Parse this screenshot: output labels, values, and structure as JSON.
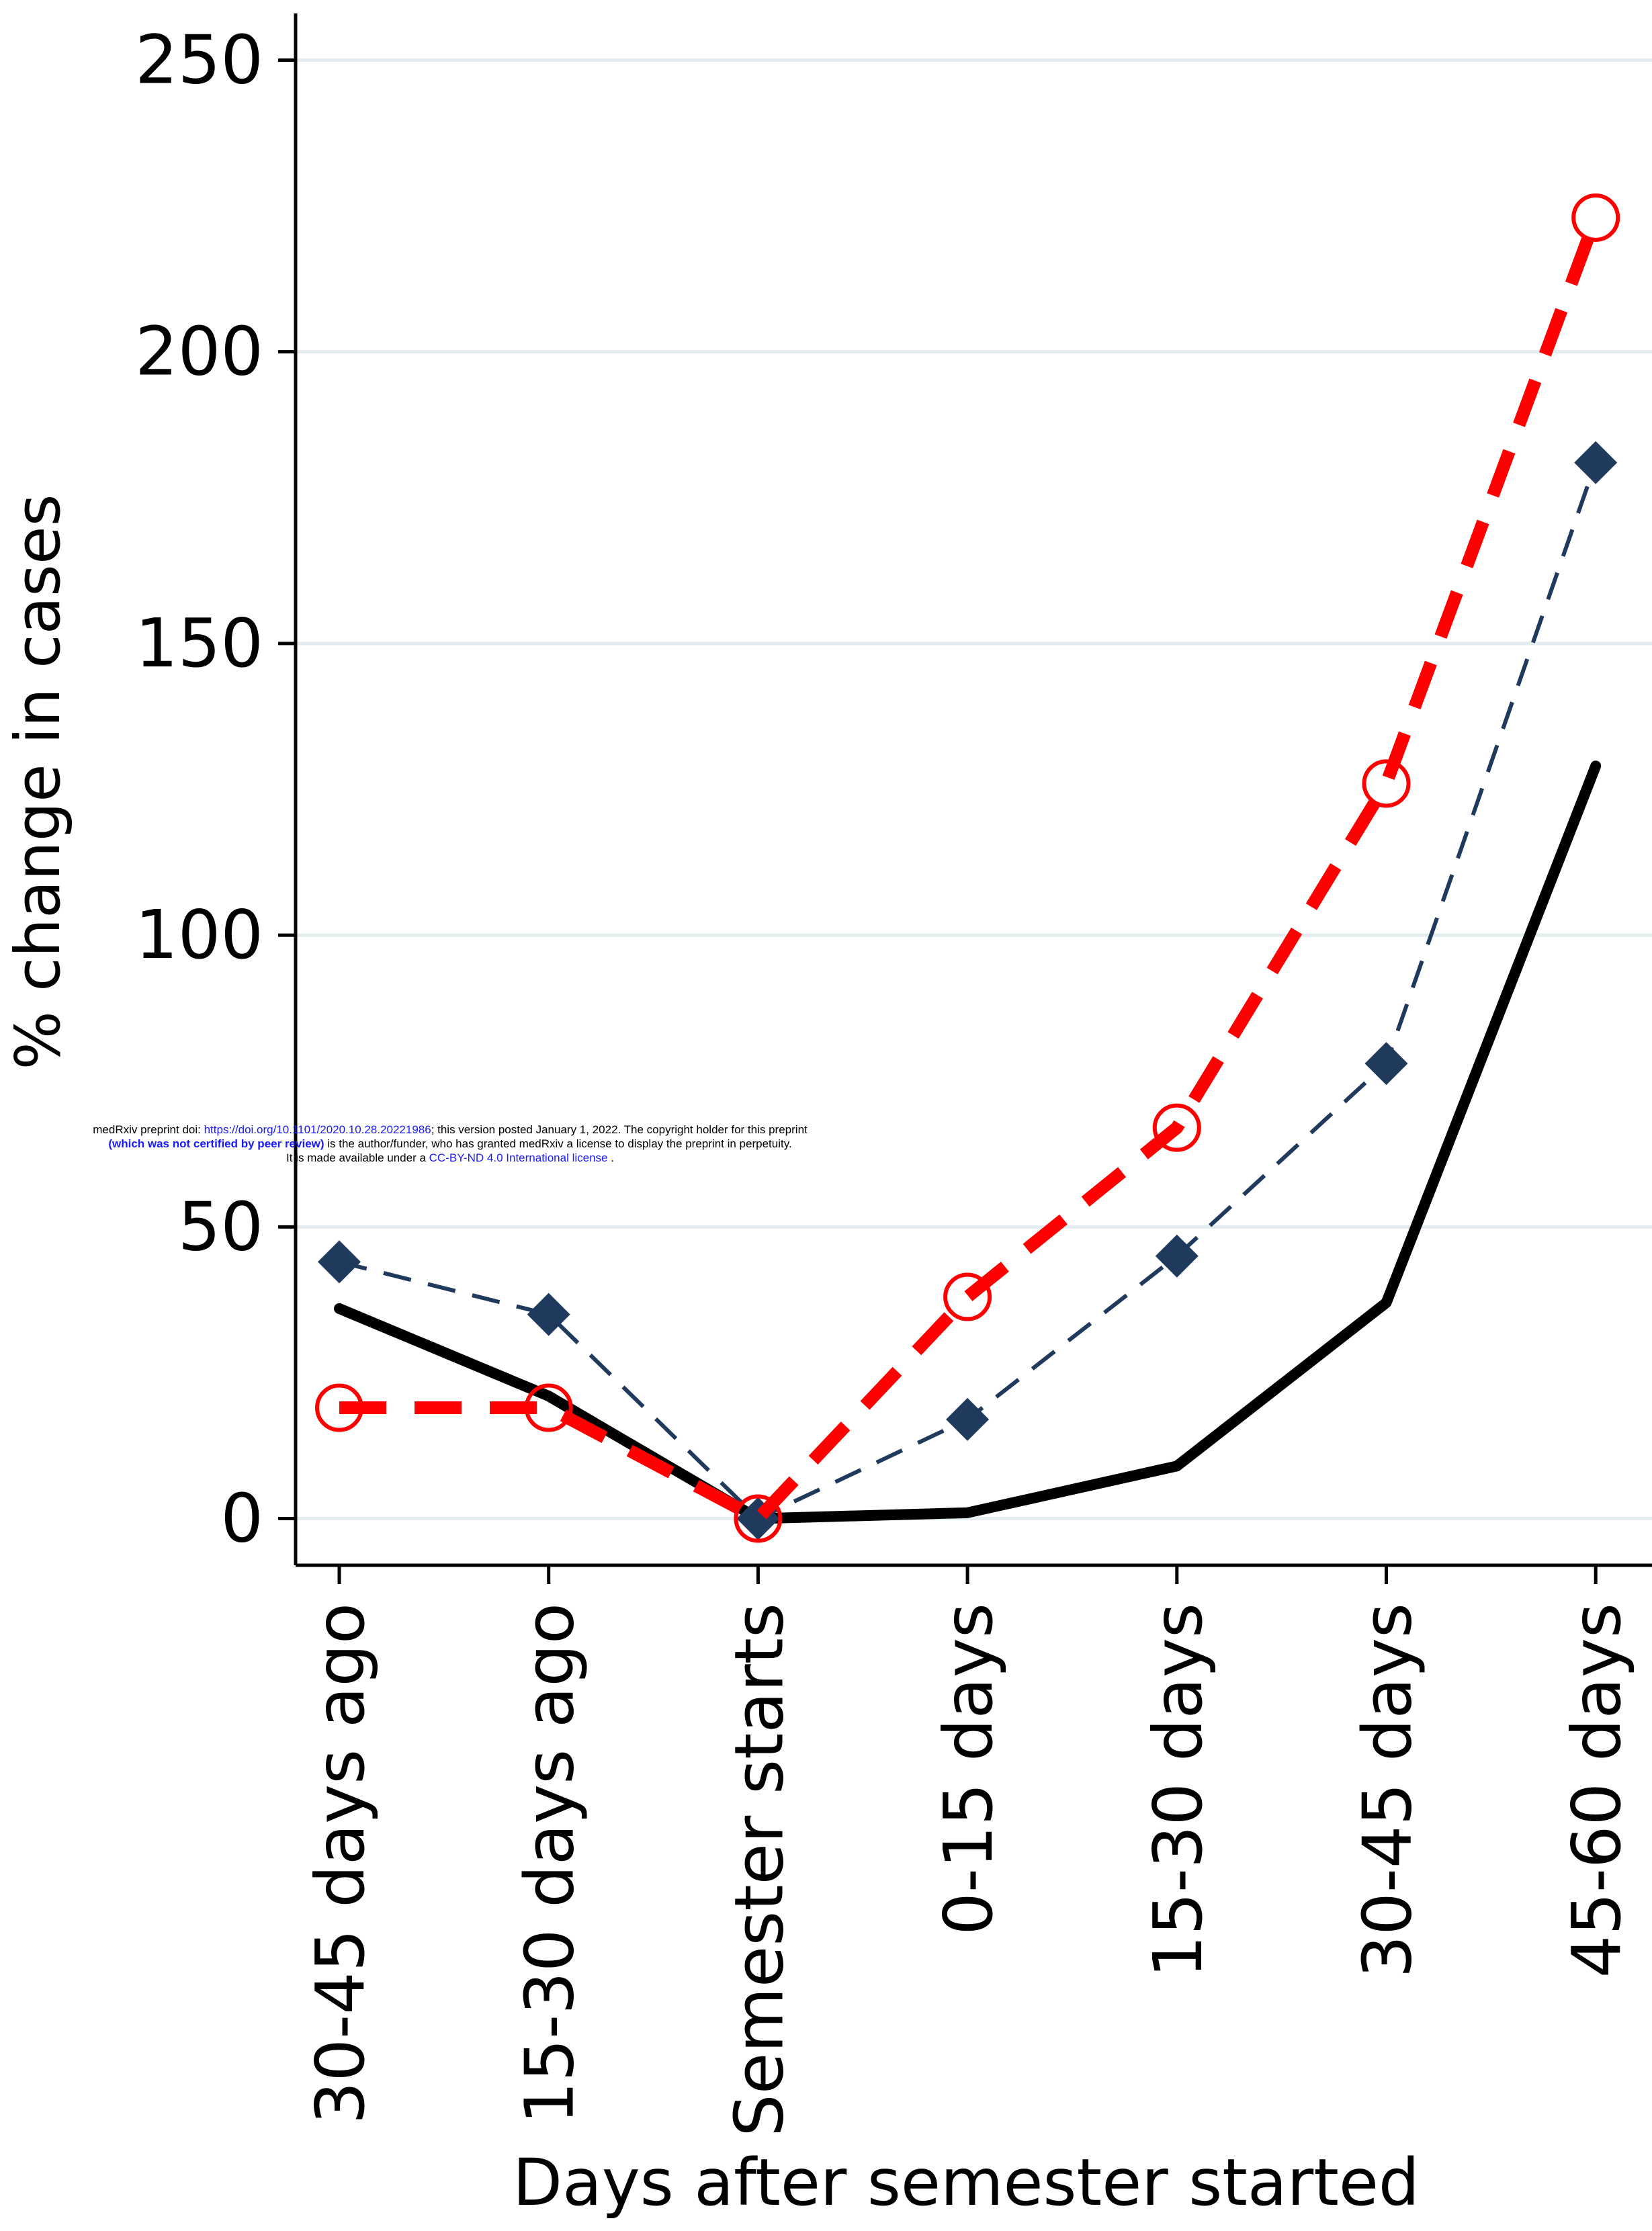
{
  "chart_data": {
    "type": "line",
    "xlabel": "Days after semester started",
    "ylabel": "% change in cases",
    "categories": [
      "30-45 days ago",
      "15-30 days ago",
      "Semester starts",
      "0-15 days",
      "15-30 days",
      "30-45 days",
      "45-60 days"
    ],
    "ylim": [
      -8,
      258
    ],
    "yticks": [
      0,
      50,
      100,
      150,
      200,
      250
    ],
    "grid": true,
    "series": [
      {
        "color": "#000000",
        "line": "solid",
        "marker": "none",
        "values": [
          36,
          21,
          0,
          1,
          9,
          37,
          129
        ]
      },
      {
        "color": "#1f3a5c",
        "line": "dashed",
        "marker": "diamond",
        "values": [
          44,
          35,
          0,
          17,
          45,
          78,
          181
        ]
      },
      {
        "color": "#ff0000",
        "line": "dashed",
        "marker": "hollow-circle",
        "values": [
          19,
          19,
          0,
          38,
          67,
          126,
          223
        ]
      }
    ]
  },
  "banner": {
    "line1_prefix": "medRxiv preprint doi: ",
    "line1_link": "https://doi.org/10.1101/2020.10.28.20221986",
    "line1_suffix": "; this version posted January 1, 2022. The copyright holder for this preprint",
    "line2_bold": "(which was not certified by peer review)",
    "line2_suffix": " is the author/funder, who has granted medRxiv a license to display the preprint in perpetuity.",
    "line3_prefix": "It is made available under a ",
    "line3_link": "CC-BY-ND 4.0 International license",
    "line3_suffix": " ."
  }
}
